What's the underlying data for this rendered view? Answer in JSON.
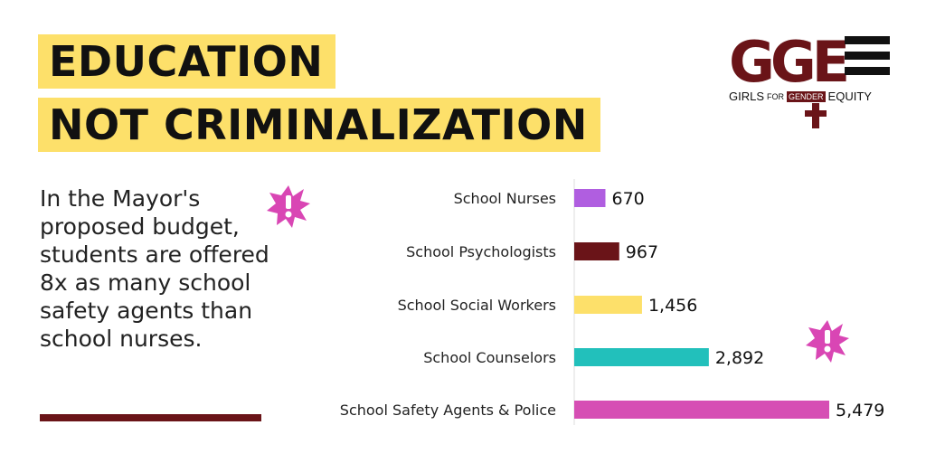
{
  "title": {
    "line1": "EDUCATION",
    "line2": "NOT CRIMINALIZATION"
  },
  "logo": {
    "letters": "GGE",
    "text_left": "GIRLS",
    "text_for": "FOR",
    "text_gender": "GENDER",
    "text_right": "EQUITY",
    "color": "#6a1418"
  },
  "body": {
    "text": "In the Mayor's proposed budget, students are offered 8x as many school safety agents than school nurses."
  },
  "icons": {
    "burst_left": "exclamation-burst-icon",
    "burst_right": "exclamation-burst-icon",
    "burst_color": "#d946b4"
  },
  "chart_data": {
    "type": "bar",
    "orientation": "horizontal",
    "categories": [
      "School Nurses",
      "School Psychologists",
      "School Social Workers",
      "School Counselors",
      "School Safety Agents & Police"
    ],
    "values": [
      670,
      967,
      1456,
      2892,
      5479
    ],
    "value_labels": [
      "670",
      "967",
      "1,456",
      "2,892",
      "5,479"
    ],
    "colors": [
      "#b05ee0",
      "#6a1418",
      "#fde06a",
      "#22c0bb",
      "#d64eb4"
    ],
    "xlim": [
      0,
      5479
    ],
    "title": "",
    "xlabel": "",
    "ylabel": "",
    "grid": false,
    "legend": false
  }
}
